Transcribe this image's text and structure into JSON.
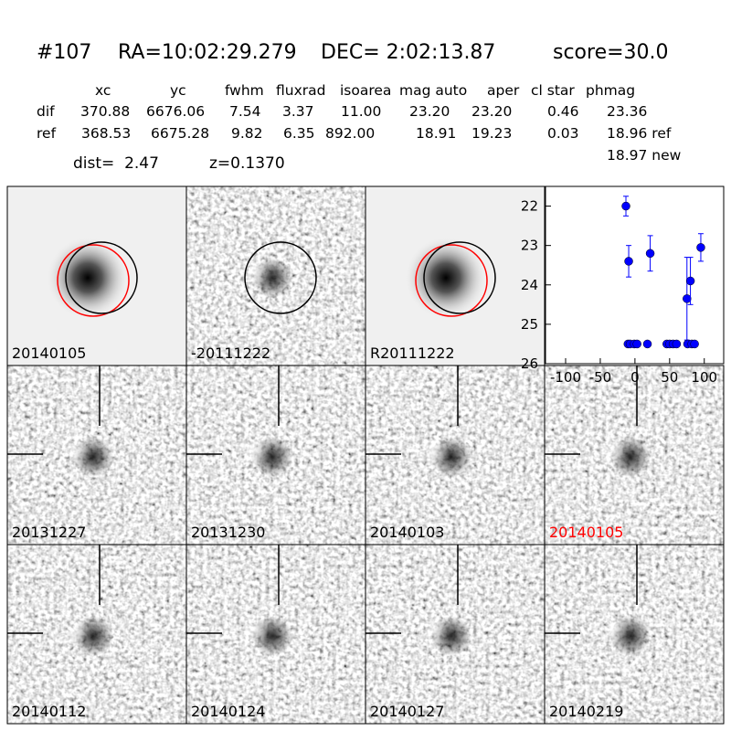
{
  "header": {
    "id": "#107",
    "ra": "RA=10:02:29.279",
    "dec": "DEC= 2:02:13.87",
    "score": "score=30.0"
  },
  "table": {
    "columns": [
      "xc",
      "yc",
      "fwhm",
      "fluxrad",
      "isoarea",
      "mag auto",
      "aper",
      "cl star",
      "phmag"
    ],
    "rows": [
      [
        "dif",
        "370.88",
        "6676.06",
        "7.54",
        "3.37",
        "11.00",
        "23.20",
        "23.20",
        "0.46",
        "23.36"
      ],
      [
        "ref",
        "368.53",
        "6675.28",
        "9.82",
        "6.35",
        "892.00",
        "18.91",
        "19.23",
        "0.03",
        "18.96 ref"
      ]
    ],
    "extra": "18.97 new",
    "dist": "dist=  2.47",
    "z": "z=0.1370"
  },
  "stamps": [
    {
      "label": "20140105"
    },
    {
      "label": "-20111222"
    },
    {
      "label": "R20111222"
    },
    {
      "label": "20131227"
    },
    {
      "label": "20131230"
    },
    {
      "label": "20140103"
    },
    {
      "label": "20140105",
      "label_color": "#ff0000"
    },
    {
      "label": "20140112"
    },
    {
      "label": "20140124"
    },
    {
      "label": "20140127"
    },
    {
      "label": "20140219"
    }
  ],
  "chart_data": {
    "type": "scatter",
    "color": "#0000ff",
    "y_inverted": true,
    "x": [
      -13,
      -10,
      -9,
      -7,
      -1,
      3,
      18,
      22,
      46,
      50,
      55,
      60,
      75,
      76,
      80,
      82,
      86,
      95
    ],
    "values": [
      22.0,
      25.5,
      23.4,
      25.5,
      25.5,
      25.5,
      25.5,
      23.2,
      25.5,
      25.5,
      25.5,
      25.5,
      24.35,
      25.5,
      23.9,
      25.5,
      25.5,
      23.05
    ],
    "errors": [
      0.25,
      null,
      0.4,
      null,
      null,
      null,
      null,
      0.45,
      null,
      null,
      null,
      null,
      1.05,
      null,
      0.6,
      null,
      null,
      0.35
    ],
    "xlim": [
      -129,
      128
    ],
    "ylim": [
      21.5,
      26
    ],
    "xticks": [
      -100,
      -50,
      0,
      50,
      100
    ],
    "yticks": [
      22,
      23,
      24,
      25,
      26
    ]
  }
}
